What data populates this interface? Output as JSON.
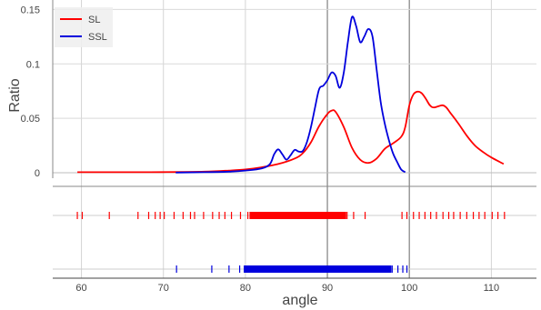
{
  "chart_data": {
    "type": "line",
    "xlabel": "angle",
    "ylabel": "Ratio",
    "xlim": [
      56.5,
      115.5
    ],
    "ylim": [
      -0.005,
      0.152
    ],
    "grid": true,
    "legend_position": "top-left",
    "x_ticks": [
      "60",
      "70",
      "80",
      "90",
      "100",
      "110"
    ],
    "y_ticks": [
      "0",
      "0.05",
      "0.1",
      "0.15"
    ],
    "series": [
      {
        "name": "SL",
        "color": "#ff0000",
        "points": [
          [
            59.5,
            0.0005
          ],
          [
            65,
            0.0005
          ],
          [
            70,
            0.0006
          ],
          [
            75,
            0.001
          ],
          [
            78,
            0.002
          ],
          [
            80,
            0.003
          ],
          [
            82,
            0.005
          ],
          [
            84,
            0.008
          ],
          [
            86,
            0.013
          ],
          [
            87,
            0.018
          ],
          [
            88,
            0.028
          ],
          [
            89,
            0.043
          ],
          [
            90,
            0.054
          ],
          [
            90.5,
            0.057
          ],
          [
            91,
            0.056
          ],
          [
            92,
            0.042
          ],
          [
            93,
            0.023
          ],
          [
            94,
            0.012
          ],
          [
            95,
            0.009
          ],
          [
            96,
            0.013
          ],
          [
            97,
            0.022
          ],
          [
            98,
            0.027
          ],
          [
            99,
            0.033
          ],
          [
            99.5,
            0.042
          ],
          [
            100,
            0.062
          ],
          [
            100.5,
            0.072
          ],
          [
            101,
            0.0745
          ],
          [
            101.5,
            0.073
          ],
          [
            102,
            0.068
          ],
          [
            102.5,
            0.062
          ],
          [
            103,
            0.06
          ],
          [
            104,
            0.062
          ],
          [
            104.5,
            0.06
          ],
          [
            105,
            0.055
          ],
          [
            106,
            0.045
          ],
          [
            107,
            0.034
          ],
          [
            108,
            0.025
          ],
          [
            109,
            0.019
          ],
          [
            110,
            0.014
          ],
          [
            111,
            0.01
          ],
          [
            111.5,
            0.008
          ]
        ]
      },
      {
        "name": "SSL",
        "color": "#0000dd",
        "points": [
          [
            71.5,
            0.0002
          ],
          [
            75,
            0.0005
          ],
          [
            78,
            0.001
          ],
          [
            80,
            0.002
          ],
          [
            82,
            0.004
          ],
          [
            83,
            0.008
          ],
          [
            83.5,
            0.017
          ],
          [
            84,
            0.0215
          ],
          [
            84.5,
            0.017
          ],
          [
            85,
            0.012
          ],
          [
            85.5,
            0.016
          ],
          [
            86,
            0.021
          ],
          [
            86.5,
            0.0195
          ],
          [
            87,
            0.02
          ],
          [
            87.5,
            0.028
          ],
          [
            88,
            0.042
          ],
          [
            88.5,
            0.06
          ],
          [
            89,
            0.077
          ],
          [
            89.5,
            0.08
          ],
          [
            90,
            0.085
          ],
          [
            90.5,
            0.092
          ],
          [
            91,
            0.089
          ],
          [
            91.5,
            0.078
          ],
          [
            92,
            0.092
          ],
          [
            92.5,
            0.12
          ],
          [
            93,
            0.143
          ],
          [
            93.5,
            0.135
          ],
          [
            94,
            0.12
          ],
          [
            94.5,
            0.125
          ],
          [
            95,
            0.132
          ],
          [
            95.5,
            0.125
          ],
          [
            96,
            0.095
          ],
          [
            96.5,
            0.065
          ],
          [
            97,
            0.045
          ],
          [
            97.5,
            0.03
          ],
          [
            98,
            0.018
          ],
          [
            98.5,
            0.01
          ],
          [
            99,
            0.003
          ],
          [
            99.5,
            0.0005
          ]
        ]
      }
    ],
    "rug": [
      {
        "name": "SL",
        "color": "#ff0000",
        "values": [
          59.5,
          60.1,
          63.4,
          66.9,
          68.2,
          69.0,
          69.6,
          70.1,
          71.3,
          72.4,
          73.3,
          73.8,
          74.9,
          76.0,
          76.8,
          77.5,
          78.3,
          79.4,
          80.3,
          81.1,
          81.8,
          82.5,
          83.6,
          84.7,
          85.3,
          86.2,
          87.4,
          88.3,
          89.1,
          90.0,
          90.8,
          91.6,
          92.4,
          93.2,
          94.6,
          99.1,
          99.7,
          100.5,
          101.2,
          101.9,
          102.6,
          103.3,
          104.1,
          104.8,
          105.4,
          106.2,
          107.0,
          107.8,
          108.5,
          109.2,
          110.1,
          110.8,
          111.6
        ]
      },
      {
        "name": "SSL",
        "color": "#0000dd",
        "values": [
          71.6,
          75.9,
          78.0,
          79.3,
          80.1,
          81.2,
          82.0,
          82.8,
          83.5,
          84.3,
          85.1,
          86.0,
          86.8,
          87.6,
          88.4,
          89.2,
          90.1,
          91.0,
          91.9,
          92.8,
          93.6,
          94.5,
          95.4,
          96.2,
          97.1,
          97.9,
          98.6,
          99.2,
          99.7
        ]
      }
    ]
  }
}
